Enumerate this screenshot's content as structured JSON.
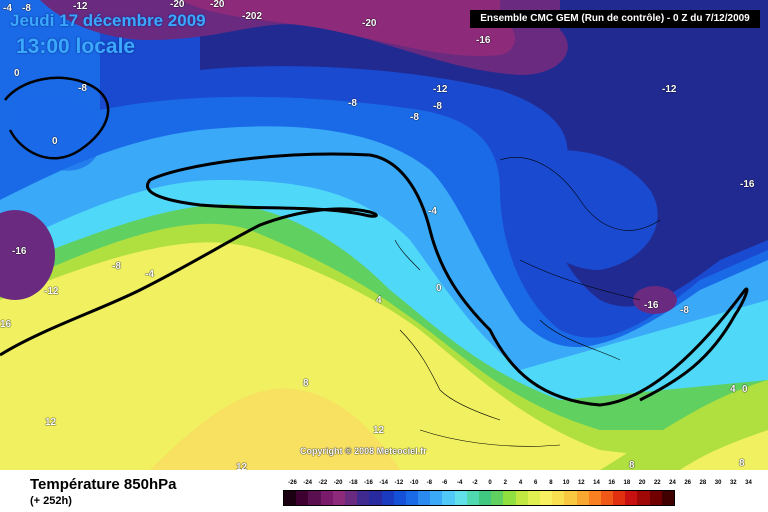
{
  "header": {
    "date_label": "Jeudi 17 décembre 2009",
    "time_label": "13:00 locale",
    "model_label": "Ensemble CMC GEM (Run de contrôle) - 0 Z du 7/12/2009"
  },
  "map": {
    "copyright": "Copyright © 2008 Meteociel.fr",
    "contour_labels": [
      {
        "text": "-4"
      },
      {
        "text": "-8"
      },
      {
        "text": "-12"
      },
      {
        "text": "-20"
      },
      {
        "text": "-20"
      },
      {
        "text": "-202"
      },
      {
        "text": "-20"
      },
      {
        "text": "-16"
      },
      {
        "text": "0"
      },
      {
        "text": "-8"
      },
      {
        "text": "0"
      },
      {
        "text": "-8"
      },
      {
        "text": "-12"
      },
      {
        "text": "-8"
      },
      {
        "text": "-8"
      },
      {
        "text": "-12"
      },
      {
        "text": "-16"
      },
      {
        "text": "-4"
      },
      {
        "text": "-16"
      },
      {
        "text": "-8"
      },
      {
        "text": "-4"
      },
      {
        "text": "-12"
      },
      {
        "text": "16"
      },
      {
        "text": "4"
      },
      {
        "text": "0"
      },
      {
        "text": "-16"
      },
      {
        "text": "-8"
      },
      {
        "text": "8"
      },
      {
        "text": "4"
      },
      {
        "text": "0"
      },
      {
        "text": "12"
      },
      {
        "text": "12"
      },
      {
        "text": "12"
      },
      {
        "text": "8"
      },
      {
        "text": "8"
      }
    ]
  },
  "footer": {
    "title": "Température 850hPa",
    "subtitle": "(+ 252h)"
  },
  "legend": {
    "ticks": [
      "-26",
      "-24",
      "-22",
      "-20",
      "-18",
      "-16",
      "-14",
      "-12",
      "-10",
      "-8",
      "-6",
      "-4",
      "-2",
      "0",
      "2",
      "4",
      "6",
      "8",
      "10",
      "12",
      "14",
      "16",
      "18",
      "20",
      "22",
      "24",
      "26",
      "28",
      "30",
      "32",
      "34"
    ],
    "colors": [
      "#1a0010",
      "#3d0030",
      "#5a1050",
      "#7a1a6a",
      "#8e2a7a",
      "#6a2a80",
      "#402a90",
      "#2a2aa0",
      "#1a3ac0",
      "#1450d8",
      "#1a6ae8",
      "#2a8af0",
      "#3aaaf8",
      "#50c8f8",
      "#60e0e8",
      "#50d8b0",
      "#40c880",
      "#60d060",
      "#90e040",
      "#c0e840",
      "#e0f050",
      "#f8f060",
      "#f8e050",
      "#f8c840",
      "#f8a830",
      "#f88020",
      "#f05818",
      "#e03010",
      "#c81010",
      "#a00808",
      "#700000",
      "#400000"
    ],
    "scale_colors": {
      "deep_magenta": "#8e2a7a",
      "navy": "#202a90",
      "blue": "#1a4ad0",
      "mid_blue": "#1a6ae8",
      "sky": "#3aaaf8",
      "cyan": "#50d8f8",
      "teal": "#40d0b8",
      "green": "#60d060",
      "lime": "#b0e040",
      "yellow": "#f0f060",
      "gold": "#f8e060"
    }
  }
}
